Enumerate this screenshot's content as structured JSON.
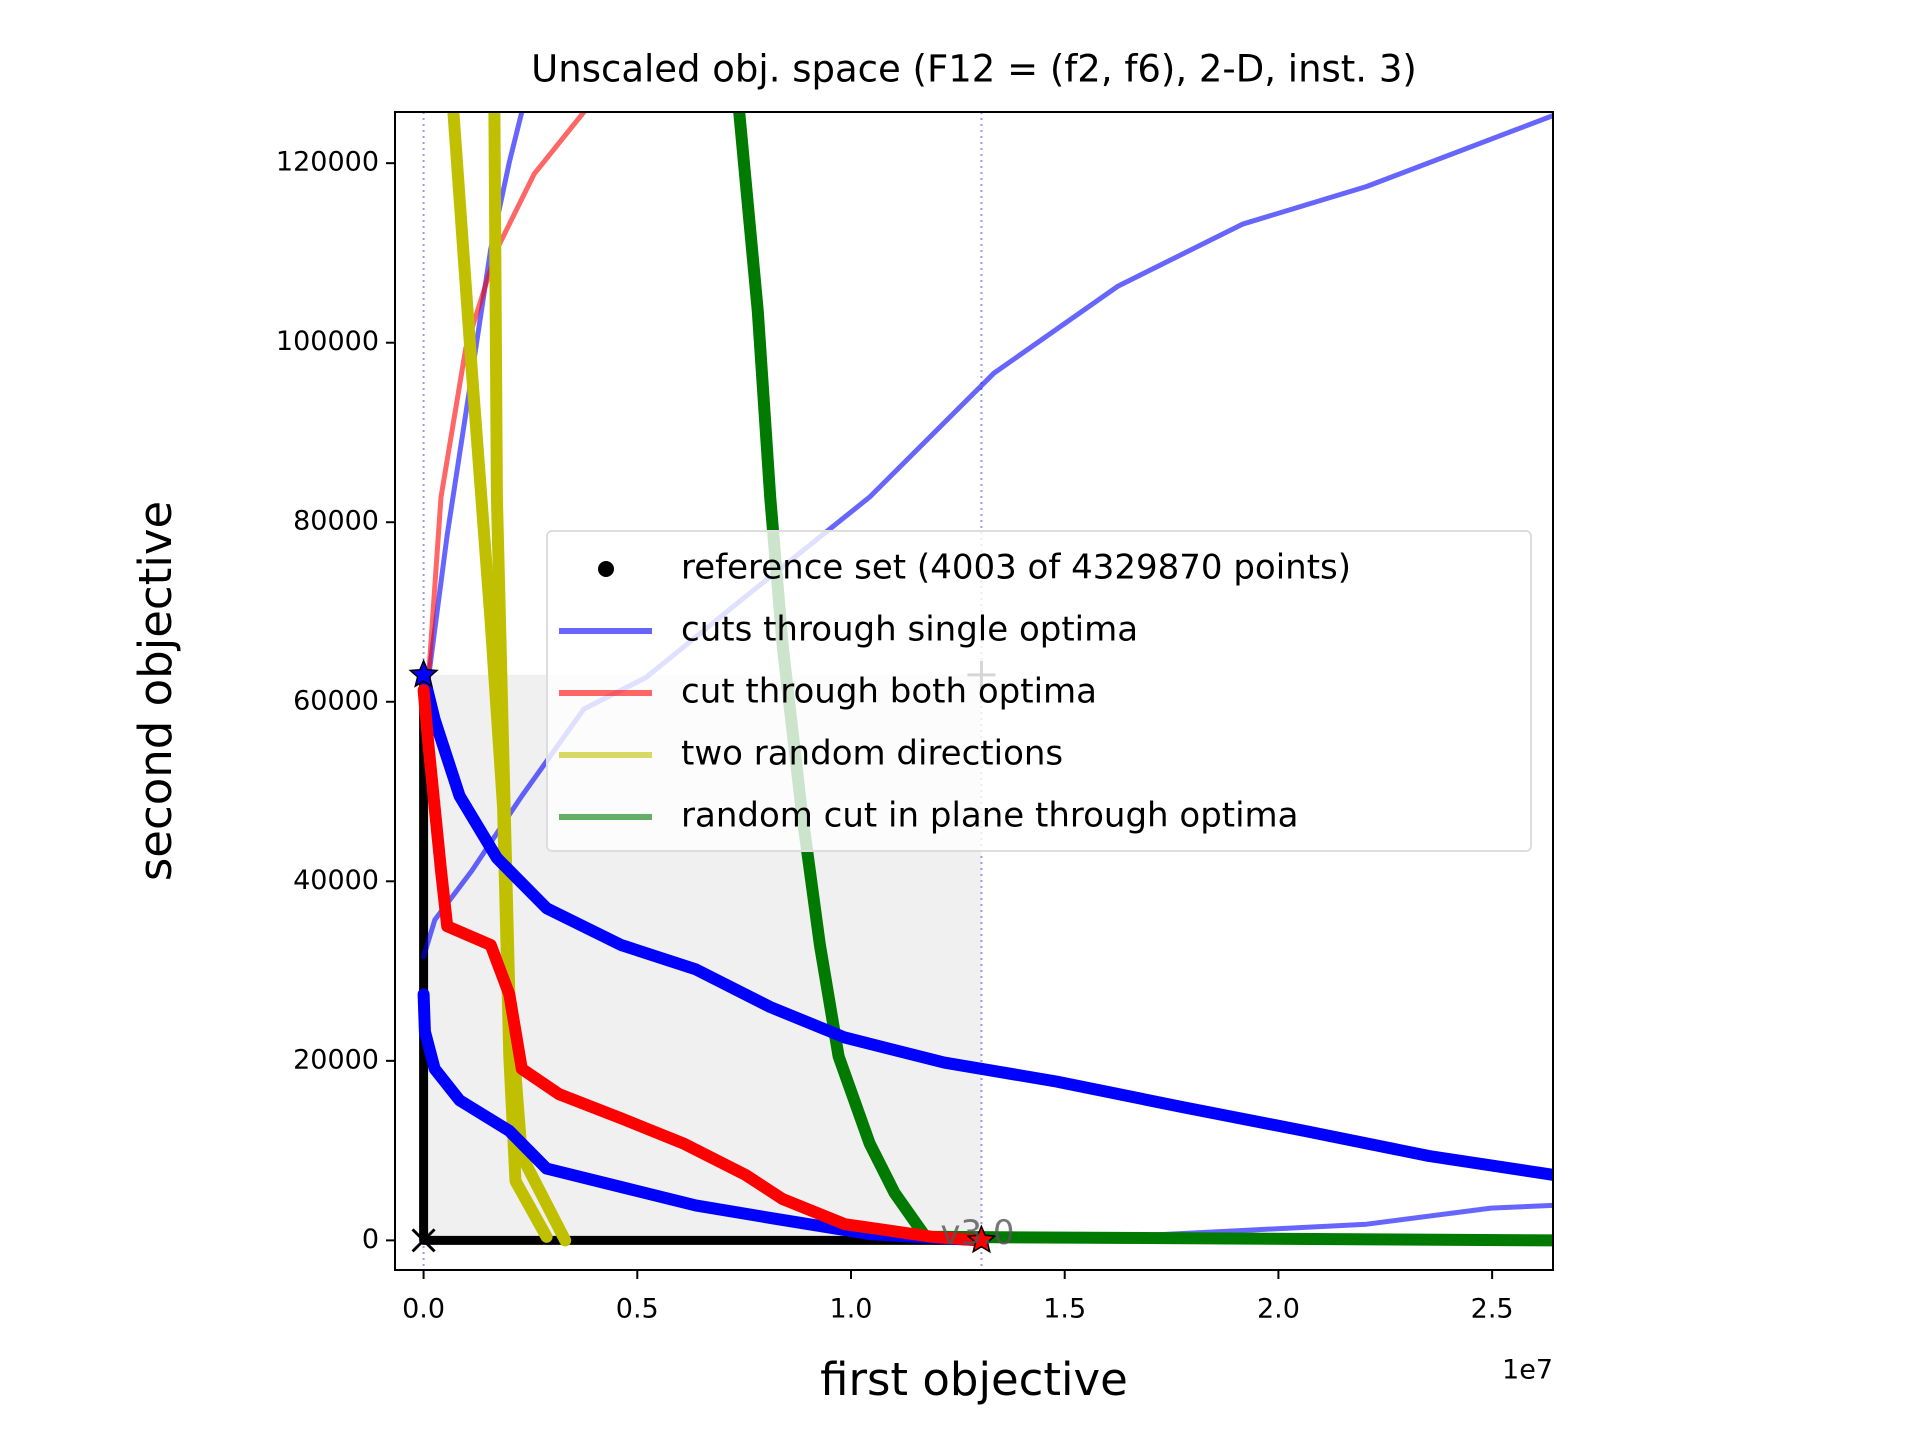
{
  "chart_data": {
    "type": "line",
    "title": "Unscaled obj. space (F12 = (f2, f6), 2-D, inst. 3)",
    "x_label": "first objective",
    "y_label": "second objective",
    "x_offset_label": "1e7",
    "watermark": "v3.0",
    "xlim": [
      -668600,
      26424000
    ],
    "ylim": [
      -3300,
      125700
    ],
    "xticks": [
      {
        "value": 0,
        "label": "0.0"
      },
      {
        "value": 5000000,
        "label": "0.5"
      },
      {
        "value": 10000000,
        "label": "1.0"
      },
      {
        "value": 15000000,
        "label": "1.5"
      },
      {
        "value": 20000000,
        "label": "2.0"
      },
      {
        "value": 25000000,
        "label": "2.5"
      }
    ],
    "yticks": [
      0,
      20000,
      40000,
      60000,
      80000,
      100000,
      120000
    ],
    "legend": "center right",
    "region": {
      "color": "#f0f0f0",
      "x": [
        0,
        13052000
      ],
      "y": [
        0,
        63000
      ]
    },
    "series": [
      {
        "name": "reference set (4003 of 4329870 points)",
        "color": "#000000",
        "style": "points",
        "x": [
          0,
          13052000,
          null,
          0,
          0
        ],
        "y": [
          0,
          0,
          null,
          0,
          63000
        ]
      },
      {
        "name": "cuts through single optima",
        "color": "#0000ff",
        "style": "thin",
        "x": [
          0,
          262000,
          1134000,
          2297000,
          3750000,
          5203000,
          7529000,
          10436000,
          13343000,
          16250000,
          19157000,
          22064000,
          26424000
        ],
        "y": [
          31600,
          35700,
          41200,
          49500,
          59200,
          62700,
          71700,
          82800,
          96600,
          106300,
          113200,
          117400,
          125300
        ]
      },
      {
        "color": "#0000ff",
        "style": "thin",
        "x": [
          116000,
          552000,
          1134000,
          1570000,
          2006000,
          2297000
        ],
        "y": [
          62700,
          78600,
          96600,
          110400,
          120100,
          125700
        ]
      },
      {
        "color": "#0000ff",
        "style": "thin",
        "x": [
          13052000,
          16250000,
          19157000,
          22064000,
          24971000,
          26424000
        ],
        "y": [
          0,
          400,
          1100,
          1800,
          3600,
          3900
        ]
      },
      {
        "name": "cut through both optima",
        "color": "#ff0000",
        "style": "thin",
        "x": [
          116000,
          407000,
          988000,
          1715000,
          2587000,
          3750000
        ],
        "y": [
          62700,
          82800,
          99400,
          110400,
          118800,
          125700
        ]
      },
      {
        "name": "two random directions",
        "color": "#c0c000",
        "style": "thick",
        "x": [
          698000,
          1134000,
          1570000,
          1860000,
          2006000,
          2151000,
          2878000
        ],
        "y": [
          125700,
          96600,
          68900,
          48200,
          20500,
          6600,
          400
        ]
      },
      {
        "color": "#c0c000",
        "style": "thick",
        "x": [
          1657000,
          1715000,
          1860000,
          2006000,
          2297000,
          3314000
        ],
        "y": [
          125700,
          82800,
          55100,
          27400,
          9400,
          0
        ]
      },
      {
        "name": "random cut in plane through optima",
        "color": "#007a00",
        "style": "thick",
        "x": [
          7384000,
          7820000,
          8110000,
          8401000,
          8837000,
          9273000,
          9709000,
          10436000,
          11017000,
          11744000,
          26424000
        ],
        "y": [
          125700,
          103500,
          82800,
          66200,
          48200,
          32900,
          20500,
          10800,
          5300,
          400,
          0
        ]
      },
      {
        "color": "#0000ff",
        "style": "thick",
        "x": [
          0,
          260000,
          843000,
          1715000,
          2878000,
          4622000,
          6366000,
          8110000,
          9855000,
          12180000,
          14800000,
          17700000,
          20610000,
          23520000,
          26420000
        ],
        "y": [
          63000,
          58000,
          49500,
          42600,
          37000,
          32900,
          30200,
          26000,
          22600,
          19800,
          17700,
          14900,
          12200,
          9400,
          7300
        ]
      },
      {
        "color": "#0000ff",
        "style": "thick",
        "x": [
          0,
          30000,
          260000,
          843000,
          2006000,
          2878000,
          4622000,
          6366000,
          8110000,
          10436000,
          13052000
        ],
        "y": [
          27400,
          23250,
          19100,
          15600,
          12200,
          8000,
          5950,
          3900,
          2500,
          700,
          0
        ]
      },
      {
        "color": "#ff0000",
        "style": "thick",
        "x": [
          0,
          116000,
          407000,
          552000,
          1570000,
          2006000,
          2297000,
          3169000,
          4622000,
          6076000,
          7529000,
          8401000,
          9855000,
          11890000,
          13052000
        ],
        "y": [
          61300,
          55100,
          41200,
          35000,
          32900,
          27400,
          19100,
          16300,
          13600,
          10800,
          7300,
          4600,
          1800,
          400,
          0
        ]
      }
    ],
    "markers": [
      {
        "symbol": "star",
        "color": "#0000ff",
        "x": 0,
        "y": 63000
      },
      {
        "symbol": "star",
        "color": "#ff0000",
        "x": 13052000,
        "y": 0
      },
      {
        "symbol": "cross",
        "color": "#000000",
        "x": 0,
        "y": 0
      },
      {
        "symbol": "plus",
        "color": "#333333",
        "x": 13052000,
        "y": 63000
      }
    ]
  }
}
